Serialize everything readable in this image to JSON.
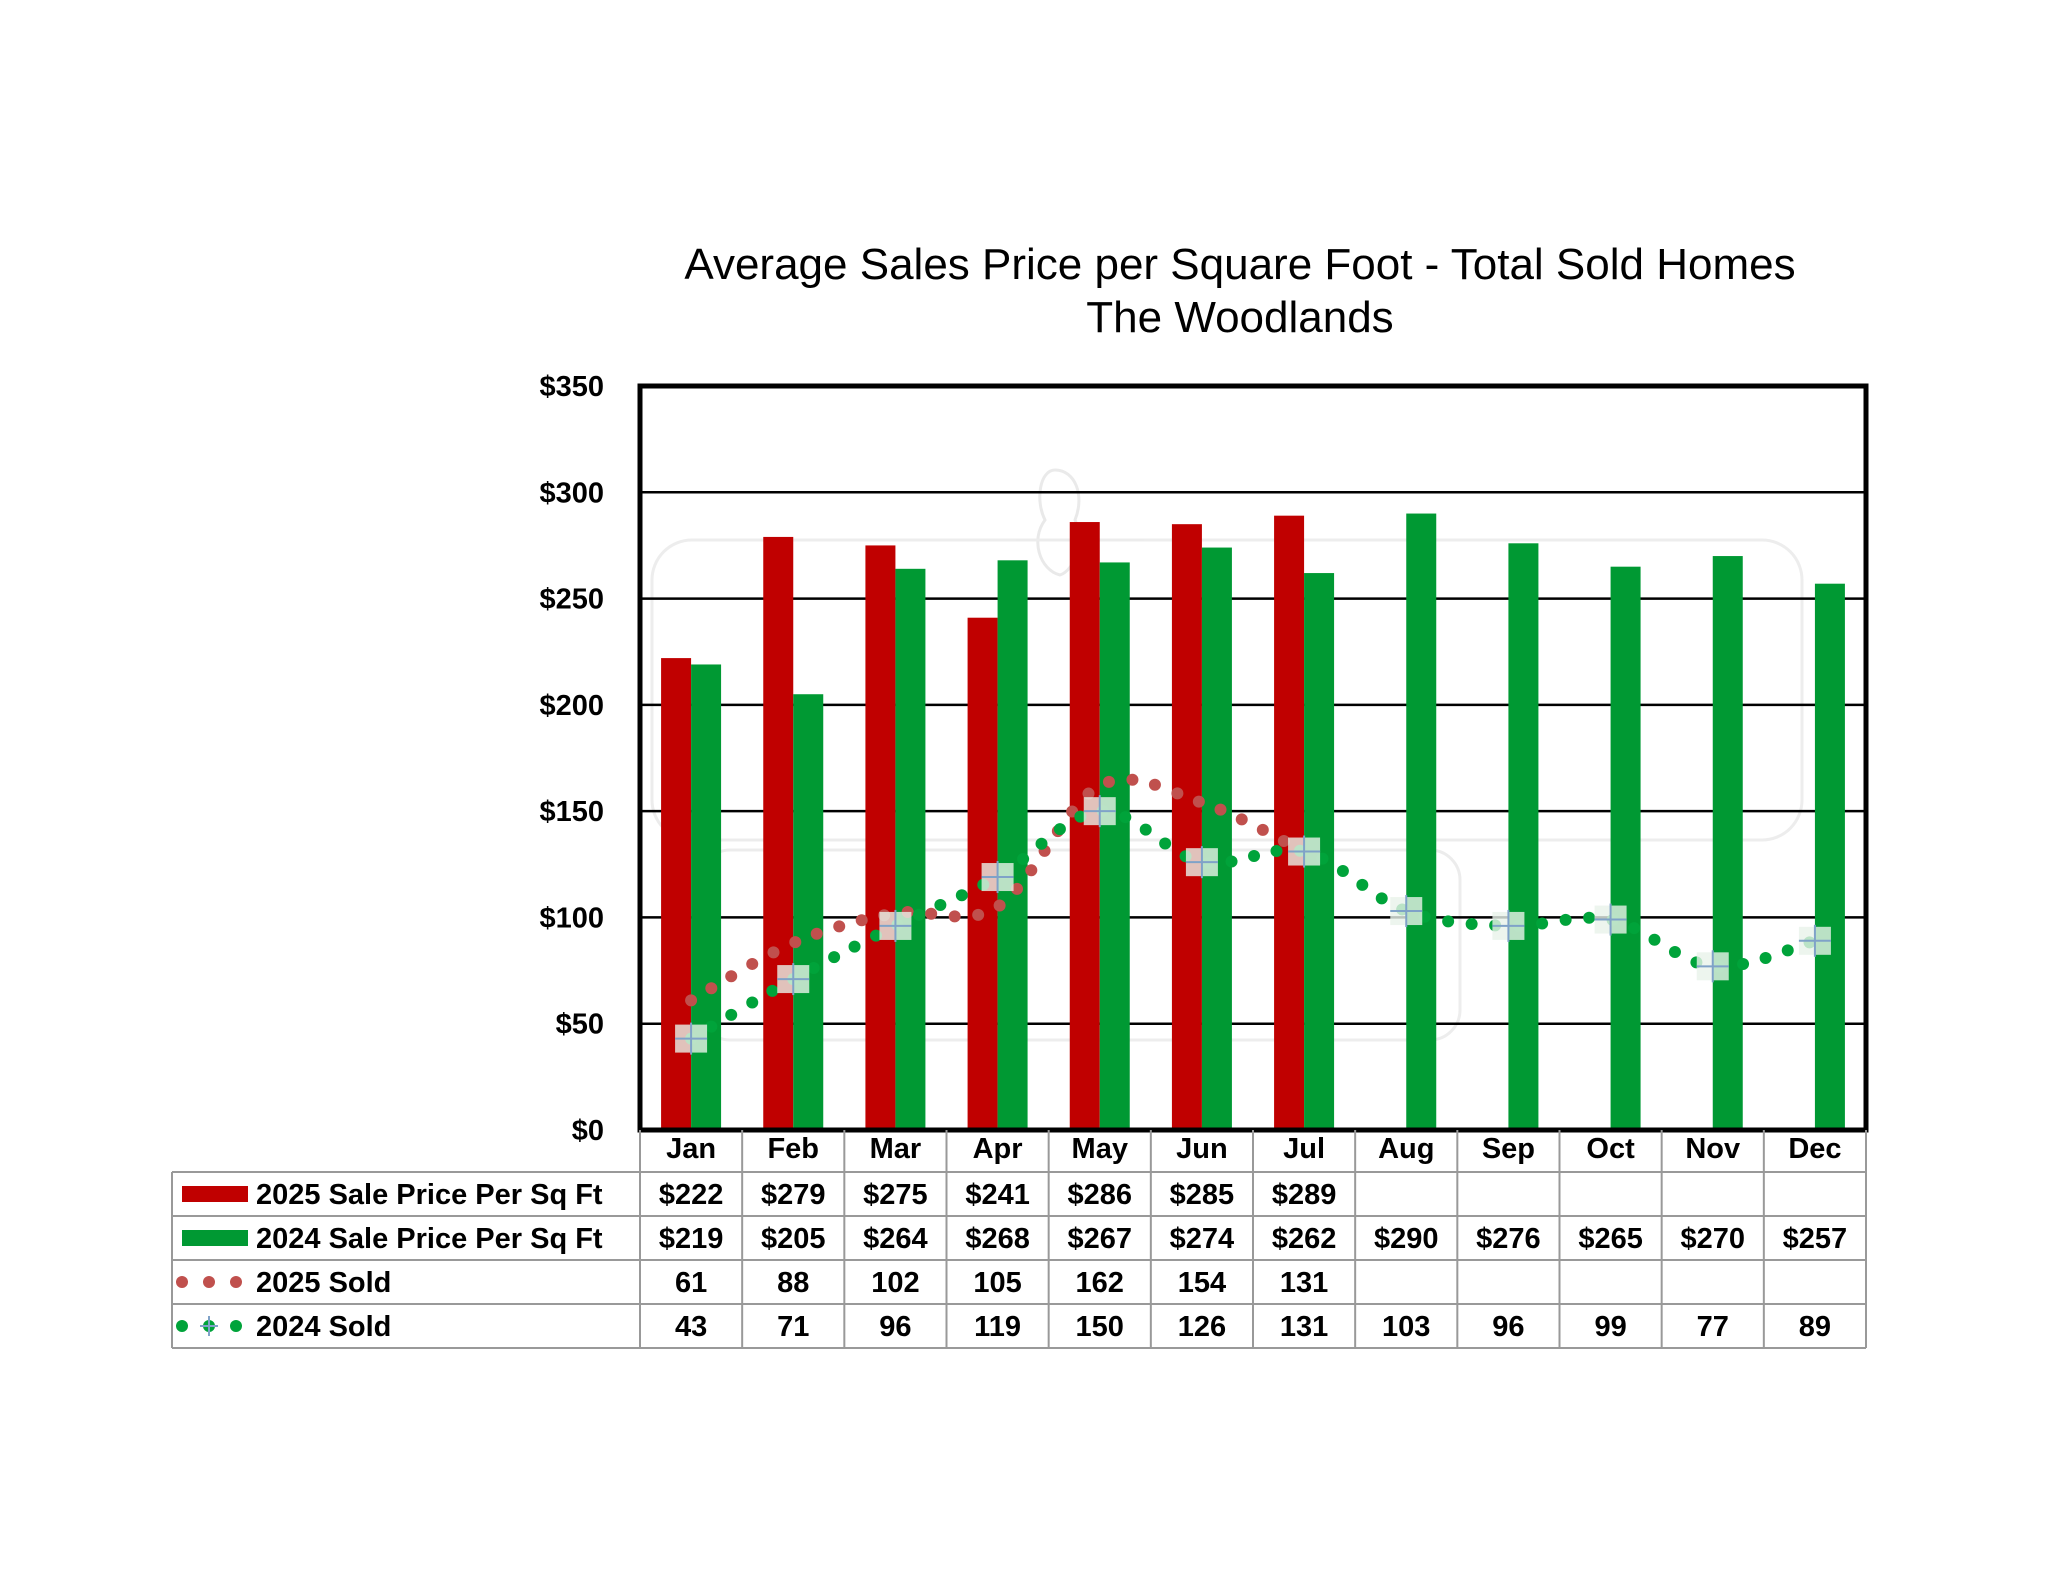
{
  "chart_data": {
    "type": "bar",
    "title": "Average Sales Price per Square Foot - Total Sold Homes",
    "subtitle": "The Woodlands",
    "categories": [
      "Jan",
      "Feb",
      "Mar",
      "Apr",
      "May",
      "Jun",
      "Jul",
      "Aug",
      "Sep",
      "Oct",
      "Nov",
      "Dec"
    ],
    "ylim": [
      0,
      350
    ],
    "yticks": [
      "$0",
      "$50",
      "$100",
      "$150",
      "$200",
      "$250",
      "$300",
      "$350"
    ],
    "grid": true,
    "legend_position": "table-below",
    "series": [
      {
        "name": "2025 Sale Price Per Sq Ft",
        "kind": "bar",
        "color": "#c00000",
        "values": [
          222,
          279,
          275,
          241,
          286,
          285,
          289,
          null,
          null,
          null,
          null,
          null
        ],
        "labels": [
          "$222",
          "$279",
          "$275",
          "$241",
          "$286",
          "$285",
          "$289",
          "",
          "",
          "",
          "",
          ""
        ]
      },
      {
        "name": "2024 Sale Price Per Sq Ft",
        "kind": "bar",
        "color": "#009933",
        "values": [
          219,
          205,
          264,
          268,
          267,
          274,
          262,
          290,
          276,
          265,
          270,
          257
        ],
        "labels": [
          "$219",
          "$205",
          "$264",
          "$268",
          "$267",
          "$274",
          "$262",
          "$290",
          "$276",
          "$265",
          "$270",
          "$257"
        ]
      },
      {
        "name": "2025 Sold",
        "kind": "dotted-line",
        "color": "#c0504d",
        "values": [
          61,
          88,
          102,
          105,
          162,
          154,
          131,
          null,
          null,
          null,
          null,
          null
        ],
        "labels": [
          "61",
          "88",
          "102",
          "105",
          "162",
          "154",
          "131",
          "",
          "",
          "",
          "",
          ""
        ]
      },
      {
        "name": "2024 Sold",
        "kind": "dotted-line-markers",
        "color": "#00a33a",
        "values": [
          43,
          71,
          96,
          119,
          150,
          126,
          131,
          103,
          96,
          99,
          77,
          89
        ],
        "labels": [
          "43",
          "71",
          "96",
          "119",
          "150",
          "126",
          "131",
          "103",
          "96",
          "99",
          "77",
          "89"
        ]
      }
    ]
  }
}
